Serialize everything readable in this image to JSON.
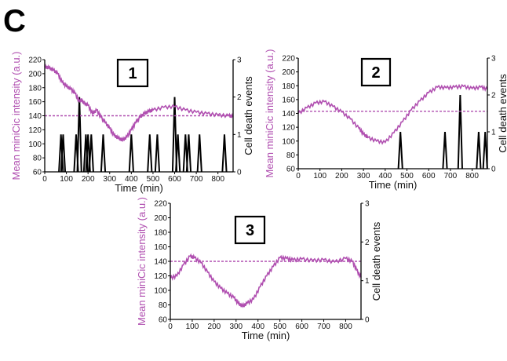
{
  "figure": {
    "panel_letter": "C",
    "colors": {
      "intensity": "#b04fb0",
      "events": "#000000",
      "threshold": "#b04fb0"
    }
  },
  "chart_data": [
    {
      "type": "line",
      "panel_label": "1",
      "xlabel": "Time (min)",
      "ylabel_left": "Mean miniCic intensity (a.u.)",
      "ylabel_right": "Cell death events",
      "xlim": [
        0,
        870
      ],
      "ylim_left": [
        60,
        220
      ],
      "ylim_right": [
        0,
        3
      ],
      "xticks": [
        0,
        100,
        200,
        300,
        400,
        500,
        600,
        700,
        800
      ],
      "yticks_left": [
        60,
        80,
        100,
        120,
        140,
        160,
        180,
        200,
        220
      ],
      "yticks_right": [
        0,
        1,
        2,
        3
      ],
      "threshold": 140,
      "series": [
        {
          "role": "intensity",
          "x": [
            0,
            20,
            40,
            60,
            80,
            100,
            120,
            140,
            160,
            170,
            180,
            200,
            220,
            240,
            260,
            280,
            300,
            320,
            340,
            360,
            380,
            400,
            420,
            440,
            460,
            480,
            500,
            550,
            600,
            650,
            700,
            750,
            800,
            850,
            870
          ],
          "y": [
            210,
            208,
            205,
            200,
            188,
            182,
            178,
            172,
            160,
            163,
            158,
            155,
            143,
            148,
            138,
            130,
            122,
            112,
            108,
            105,
            110,
            120,
            130,
            138,
            143,
            146,
            148,
            152,
            153,
            148,
            145,
            143,
            141,
            140,
            139
          ]
        },
        {
          "role": "events",
          "x": [
            75,
            85,
            145,
            160,
            190,
            200,
            215,
            270,
            400,
            485,
            520,
            600,
            615,
            650,
            665,
            715,
            830
          ],
          "y": [
            1,
            1,
            1,
            2,
            1,
            1,
            1,
            1,
            1,
            1,
            1,
            2,
            1,
            1,
            1,
            1,
            1
          ]
        }
      ]
    },
    {
      "type": "line",
      "panel_label": "2",
      "xlabel": "Time (min)",
      "ylabel_left": "Mean miniCic intensity (a.u.)",
      "ylabel_right": "Cell death events",
      "xlim": [
        0,
        870
      ],
      "ylim_left": [
        60,
        220
      ],
      "ylim_right": [
        0,
        3
      ],
      "xticks": [
        0,
        100,
        200,
        300,
        400,
        500,
        600,
        700,
        800
      ],
      "yticks_left": [
        60,
        80,
        100,
        120,
        140,
        160,
        180,
        200,
        220
      ],
      "yticks_right": [
        0,
        1,
        2,
        3
      ],
      "threshold": 143,
      "series": [
        {
          "role": "intensity",
          "x": [
            0,
            40,
            80,
            120,
            160,
            200,
            240,
            280,
            300,
            320,
            360,
            400,
            440,
            480,
            520,
            560,
            600,
            640,
            680,
            720,
            760,
            800,
            840,
            870
          ],
          "y": [
            140,
            148,
            155,
            157,
            150,
            142,
            132,
            118,
            110,
            105,
            100,
            98,
            112,
            128,
            145,
            158,
            170,
            178,
            177,
            178,
            179,
            176,
            178,
            175
          ]
        },
        {
          "role": "events",
          "x": [
            470,
            675,
            745,
            830,
            860
          ],
          "y": [
            1,
            1,
            2,
            1,
            1
          ]
        }
      ]
    },
    {
      "type": "line",
      "panel_label": "3",
      "xlabel": "Time (min)",
      "ylabel_left": "Mean miniCic intensity (a.u.)",
      "ylabel_right": "Cell death events",
      "xlim": [
        0,
        870
      ],
      "ylim_left": [
        60,
        220
      ],
      "ylim_right": [
        0,
        3
      ],
      "xticks": [
        0,
        100,
        200,
        300,
        400,
        500,
        600,
        700,
        800
      ],
      "yticks_left": [
        60,
        80,
        100,
        120,
        140,
        160,
        180,
        200,
        220
      ],
      "yticks_right": [
        0,
        1,
        2,
        3
      ],
      "threshold": 140,
      "series": [
        {
          "role": "intensity",
          "x": [
            0,
            30,
            60,
            90,
            110,
            140,
            170,
            200,
            230,
            260,
            290,
            310,
            330,
            350,
            380,
            410,
            440,
            470,
            500,
            530,
            560,
            600,
            650,
            700,
            750,
            800,
            830,
            850,
            870
          ],
          "y": [
            117,
            120,
            135,
            147,
            145,
            138,
            125,
            112,
            103,
            96,
            90,
            82,
            78,
            82,
            88,
            105,
            120,
            133,
            145,
            144,
            142,
            143,
            141,
            142,
            139,
            144,
            140,
            128,
            118
          ]
        },
        {
          "role": "events",
          "x": [],
          "y": []
        }
      ]
    }
  ]
}
